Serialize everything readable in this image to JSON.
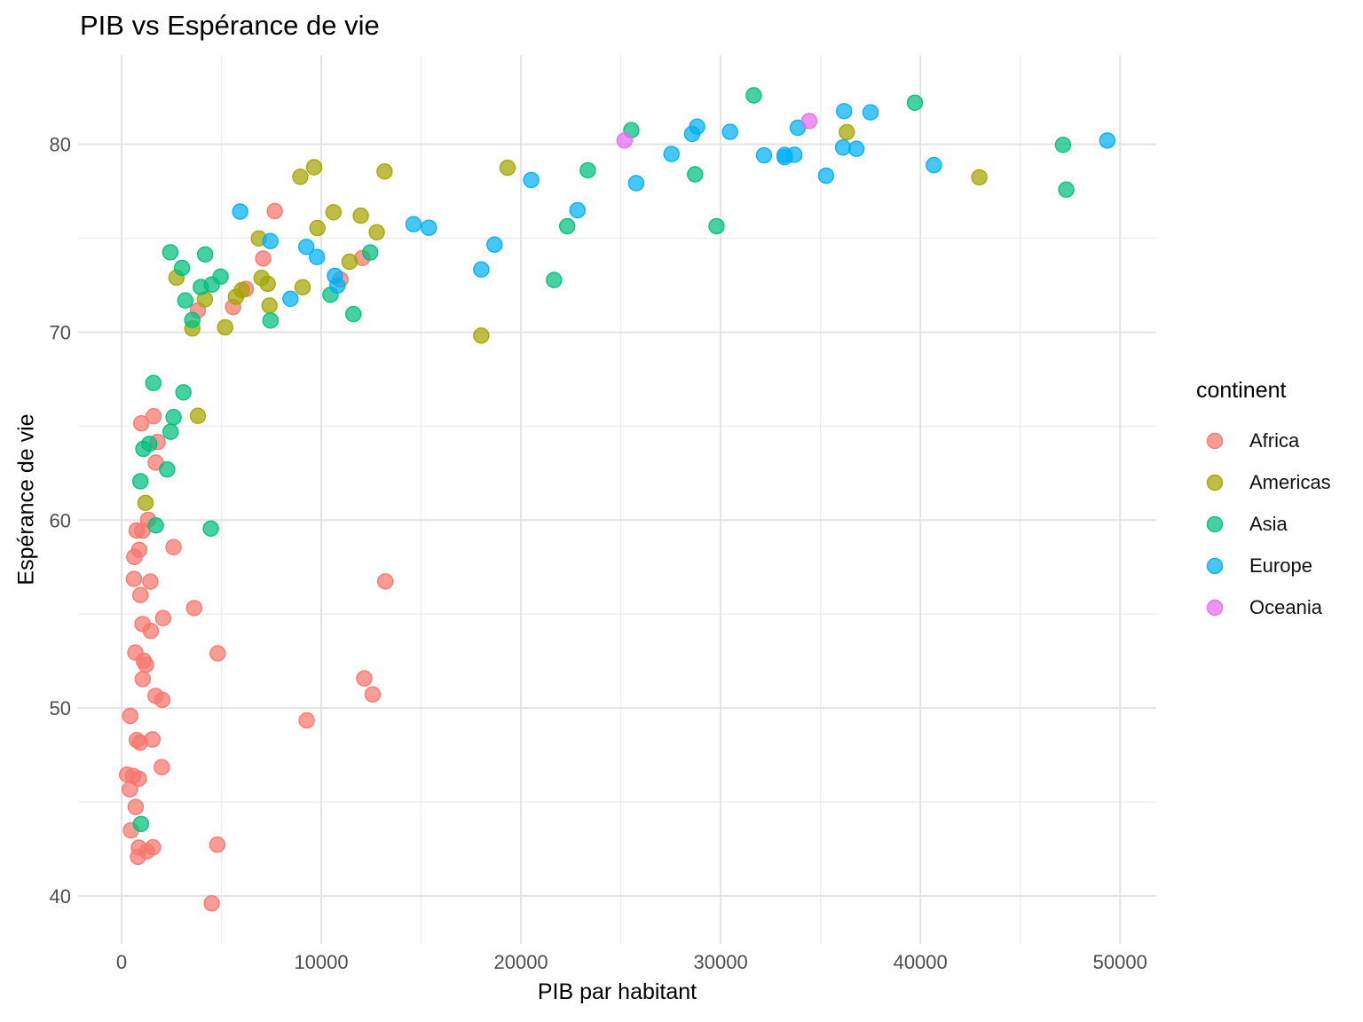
{
  "chart_data": {
    "type": "scatter",
    "title": "PIB vs Espérance de vie",
    "xlabel": "PIB par habitant",
    "ylabel": "Espérance de vie",
    "legend_title": "continent",
    "legend_position": "right",
    "grid": true,
    "background": "#FFFFFF",
    "xlim": [
      -2177,
      51812
    ],
    "ylim": [
      37.45,
      84.75
    ],
    "x_ticks": [
      0,
      10000,
      20000,
      30000,
      40000,
      50000
    ],
    "x_tick_labels": [
      "0",
      "10000",
      "20000",
      "30000",
      "40000",
      "50000"
    ],
    "x_minor_ticks": [
      5000,
      15000,
      25000,
      35000,
      45000
    ],
    "y_ticks": [
      40,
      50,
      60,
      70,
      80
    ],
    "y_tick_labels": [
      "40",
      "50",
      "60",
      "70",
      "80"
    ],
    "y_minor_ticks": [
      45,
      55,
      65,
      75
    ],
    "point_alpha": 0.75,
    "colors": {
      "grid_major": "#E3E3E3",
      "grid_minor": "#EDEDED",
      "tick_text": "#4D4D4D",
      "text": "#000000"
    },
    "series": [
      {
        "name": "Africa",
        "color": "#F8766D",
        "points": [
          [
            6223,
            72.3
          ],
          [
            4797,
            42.73
          ],
          [
            1441,
            56.73
          ],
          [
            12570,
            50.73
          ],
          [
            1217,
            52.3
          ],
          [
            430,
            49.58
          ],
          [
            2042,
            50.43
          ],
          [
            706,
            44.74
          ],
          [
            1704,
            50.65
          ],
          [
            986,
            65.15
          ],
          [
            278,
            46.46
          ],
          [
            3633,
            55.32
          ],
          [
            1545,
            48.33
          ],
          [
            2082,
            54.79
          ],
          [
            5581,
            71.34
          ],
          [
            12154,
            51.58
          ],
          [
            641,
            58.04
          ],
          [
            691,
            52.95
          ],
          [
            13206,
            56.74
          ],
          [
            753,
            59.45
          ],
          [
            1328,
            60.02
          ],
          [
            943,
            56.01
          ],
          [
            579,
            46.39
          ],
          [
            1463,
            54.11
          ],
          [
            1569,
            42.59
          ],
          [
            415,
            45.68
          ],
          [
            12057,
            73.95
          ],
          [
            1045,
            59.44
          ],
          [
            759,
            48.3
          ],
          [
            1043,
            54.47
          ],
          [
            1803,
            64.16
          ],
          [
            10957,
            72.8
          ],
          [
            3820,
            71.16
          ],
          [
            824,
            42.08
          ],
          [
            4811,
            52.91
          ],
          [
            620,
            56.87
          ],
          [
            2014,
            46.86
          ],
          [
            7670,
            76.44
          ],
          [
            863,
            46.24
          ],
          [
            1598,
            65.53
          ],
          [
            1712,
            63.06
          ],
          [
            863,
            42.57
          ],
          [
            926,
            48.16
          ],
          [
            9270,
            49.34
          ],
          [
            2602,
            58.56
          ],
          [
            4513,
            39.61
          ],
          [
            1107,
            52.52
          ],
          [
            883,
            58.42
          ],
          [
            7093,
            73.92
          ],
          [
            1056,
            51.54
          ],
          [
            1271,
            42.38
          ],
          [
            470,
            43.49
          ]
        ]
      },
      {
        "name": "Americas",
        "color": "#A3A500",
        "points": [
          [
            12779,
            75.32
          ],
          [
            3822,
            65.55
          ],
          [
            9066,
            72.39
          ],
          [
            36319,
            80.65
          ],
          [
            13172,
            78.55
          ],
          [
            7007,
            72.89
          ],
          [
            9645,
            78.78
          ],
          [
            8948,
            78.27
          ],
          [
            6025,
            72.24
          ],
          [
            6873,
            74.99
          ],
          [
            5728,
            71.88
          ],
          [
            5186,
            70.26
          ],
          [
            1202,
            60.92
          ],
          [
            3548,
            70.2
          ],
          [
            7321,
            72.57
          ],
          [
            11978,
            76.2
          ],
          [
            2749,
            72.9
          ],
          [
            9809,
            75.54
          ],
          [
            4173,
            71.75
          ],
          [
            7409,
            71.42
          ],
          [
            19329,
            78.75
          ],
          [
            18009,
            69.82
          ],
          [
            42952,
            78.24
          ],
          [
            10611,
            76.38
          ],
          [
            11416,
            73.75
          ]
        ]
      },
      {
        "name": "Asia",
        "color": "#00BF7D",
        "points": [
          [
            975,
            43.83
          ],
          [
            29796,
            75.64
          ],
          [
            1391,
            64.06
          ],
          [
            1714,
            59.72
          ],
          [
            4959,
            72.96
          ],
          [
            39725,
            82.21
          ],
          [
            2452,
            64.7
          ],
          [
            3541,
            70.65
          ],
          [
            11606,
            70.96
          ],
          [
            4471,
            59.55
          ],
          [
            25523,
            80.75
          ],
          [
            31656,
            82.6
          ],
          [
            4519,
            72.54
          ],
          [
            1593,
            67.3
          ],
          [
            23348,
            78.62
          ],
          [
            47307,
            77.59
          ],
          [
            10461,
            71.99
          ],
          [
            12452,
            74.24
          ],
          [
            3096,
            66.8
          ],
          [
            944,
            62.07
          ],
          [
            1091,
            63.79
          ],
          [
            22316,
            75.64
          ],
          [
            2606,
            65.48
          ],
          [
            3190,
            71.69
          ],
          [
            21655,
            72.78
          ],
          [
            47143,
            79.97
          ],
          [
            3970,
            72.4
          ],
          [
            4184,
            74.14
          ],
          [
            28718,
            78.4
          ],
          [
            7458,
            70.62
          ],
          [
            2442,
            74.25
          ],
          [
            3025,
            73.42
          ],
          [
            2281,
            62.7
          ]
        ]
      },
      {
        "name": "Europe",
        "color": "#00B0F6",
        "points": [
          [
            5937,
            76.42
          ],
          [
            36126,
            79.83
          ],
          [
            33693,
            79.44
          ],
          [
            7446,
            74.85
          ],
          [
            10681,
            73.0
          ],
          [
            14619,
            75.75
          ],
          [
            22833,
            76.49
          ],
          [
            35278,
            78.33
          ],
          [
            33207,
            79.31
          ],
          [
            30470,
            80.66
          ],
          [
            32170,
            79.41
          ],
          [
            27538,
            79.48
          ],
          [
            18009,
            73.34
          ],
          [
            36181,
            81.76
          ],
          [
            40676,
            78.89
          ],
          [
            28570,
            80.55
          ],
          [
            9254,
            74.54
          ],
          [
            36798,
            79.76
          ],
          [
            49357,
            80.2
          ],
          [
            15390,
            75.56
          ],
          [
            20510,
            78.1
          ],
          [
            10808,
            72.48
          ],
          [
            9787,
            74.0
          ],
          [
            18678,
            74.66
          ],
          [
            25768,
            77.93
          ],
          [
            28821,
            80.94
          ],
          [
            33860,
            80.88
          ],
          [
            37506,
            81.7
          ],
          [
            8458,
            71.78
          ],
          [
            33203,
            79.43
          ]
        ]
      },
      {
        "name": "Oceania",
        "color": "#E76BF3",
        "points": [
          [
            34435,
            81.24
          ],
          [
            25185,
            80.2
          ]
        ]
      }
    ]
  }
}
